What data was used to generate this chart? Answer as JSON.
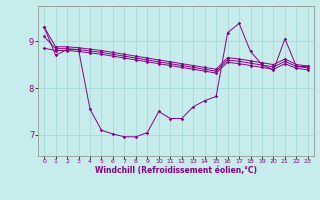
{
  "xlabel": "Windchill (Refroidissement éolien,°C)",
  "xlim": [
    -0.5,
    23.5
  ],
  "ylim": [
    6.55,
    9.75
  ],
  "yticks": [
    7,
    8,
    9
  ],
  "xticks": [
    0,
    1,
    2,
    3,
    4,
    5,
    6,
    7,
    8,
    9,
    10,
    11,
    12,
    13,
    14,
    15,
    16,
    17,
    18,
    19,
    20,
    21,
    22,
    23
  ],
  "bg_color": "#c6ecec",
  "line_color": "#880088",
  "grid_color": "#a8d8d8",
  "line1": [
    9.3,
    8.88,
    8.88,
    8.86,
    8.83,
    8.8,
    8.76,
    8.72,
    8.68,
    8.64,
    8.6,
    8.56,
    8.52,
    8.48,
    8.44,
    8.4,
    8.65,
    8.62,
    8.58,
    8.54,
    8.5,
    8.62,
    8.5,
    8.47
  ],
  "line2": [
    9.1,
    8.84,
    8.84,
    8.82,
    8.79,
    8.76,
    8.72,
    8.68,
    8.64,
    8.6,
    8.56,
    8.52,
    8.48,
    8.44,
    8.4,
    8.36,
    8.6,
    8.57,
    8.53,
    8.49,
    8.45,
    8.57,
    8.46,
    8.43
  ],
  "line3": [
    8.85,
    8.8,
    8.8,
    8.78,
    8.75,
    8.72,
    8.68,
    8.64,
    8.6,
    8.56,
    8.52,
    8.48,
    8.44,
    8.4,
    8.36,
    8.32,
    8.55,
    8.52,
    8.48,
    8.44,
    8.4,
    8.52,
    8.42,
    8.39
  ],
  "line_main": [
    9.3,
    8.7,
    8.82,
    8.82,
    7.55,
    7.1,
    7.02,
    6.96,
    6.96,
    7.05,
    7.5,
    7.35,
    7.35,
    7.6,
    7.73,
    7.82,
    9.18,
    9.38,
    8.78,
    8.5,
    8.38,
    9.05,
    8.46,
    8.46
  ]
}
